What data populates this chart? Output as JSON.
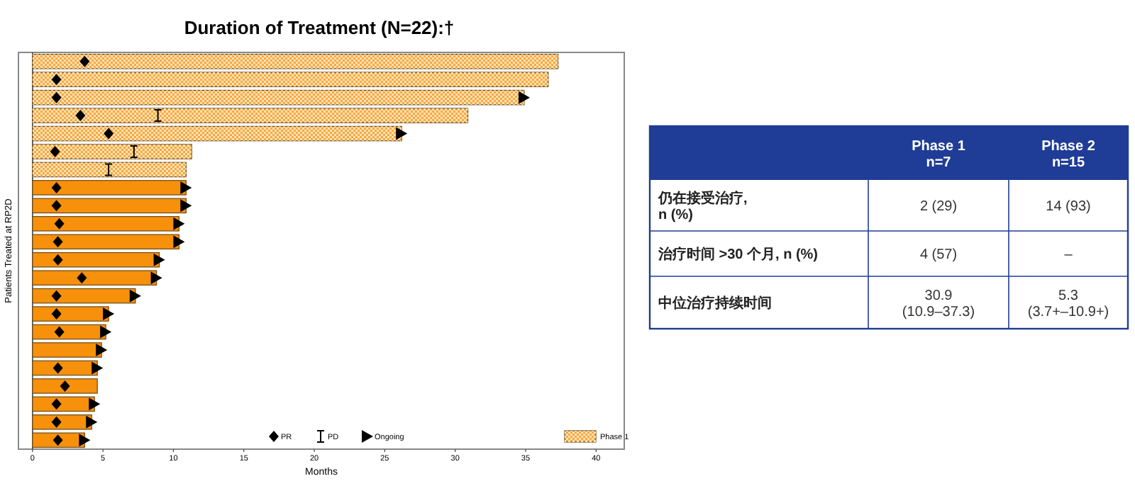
{
  "chart_data": [
    {
      "type": "bar",
      "orientation": "horizontal",
      "title": "Duration of Treatment (N=22):†",
      "xlabel": "Months",
      "ylabel": "Patients Treated at RP2D",
      "categories": [
        null,
        null,
        null,
        null,
        null,
        null,
        null,
        null,
        null,
        null,
        null,
        null,
        null,
        null,
        null,
        null,
        null,
        null,
        null,
        null,
        null,
        null
      ],
      "xlim": [
        -1,
        42
      ],
      "xticks": [
        0,
        5,
        10,
        15,
        20,
        25,
        30,
        35,
        40
      ],
      "legend": "bottom",
      "series": [
        {
          "name": "Phase 1",
          "color": "#f6a842",
          "values": [
            37.3,
            36.6,
            34.9,
            30.9,
            26.2,
            11.3,
            10.9,
            null,
            null,
            null,
            null,
            null,
            null,
            null,
            null,
            null,
            null,
            null,
            null,
            null,
            null,
            null
          ]
        },
        {
          "color": "#f7900a",
          "values": [
            null,
            null,
            null,
            null,
            null,
            null,
            null,
            10.9,
            10.9,
            10.4,
            10.4,
            9.0,
            8.8,
            7.3,
            5.4,
            5.2,
            4.9,
            4.6,
            4.6,
            4.4,
            4.2,
            3.7
          ]
        },
        {
          "type": "scatter",
          "name": "PR",
          "marker": "diamond",
          "color": "#000000",
          "values": [
            3.7,
            1.7,
            1.7,
            3.4,
            5.4,
            1.6,
            null,
            1.7,
            1.7,
            1.9,
            1.8,
            1.8,
            3.5,
            1.7,
            1.7,
            1.9,
            null,
            1.8,
            2.3,
            1.7,
            1.7,
            1.8
          ]
        },
        {
          "type": "scatter",
          "name": "PD",
          "color": "#000000",
          "values": [
            null,
            null,
            null,
            8.9,
            null,
            7.2,
            5.4,
            null,
            null,
            null,
            null,
            null,
            null,
            null,
            null,
            null,
            null,
            null,
            null,
            null,
            null,
            null
          ]
        },
        {
          "type": "scatter",
          "name": "Ongoing",
          "marker": "triangle",
          "color": "#000000",
          "values": [
            null,
            null,
            34.9,
            null,
            26.2,
            null,
            null,
            10.9,
            10.9,
            10.4,
            10.4,
            9.0,
            8.8,
            7.3,
            5.4,
            5.2,
            4.9,
            4.6,
            null,
            4.4,
            4.2,
            3.7
          ]
        }
      ]
    },
    {
      "type": "other",
      "categories": [
        "Phase 1\nn=7",
        "Phase 2\nn=15"
      ],
      "y_categories": [
        "仍在接受治疗,\nn (%)",
        "治疗时间 >30 个月, n (%)",
        "中位治疗持续时间"
      ],
      "cell_labels": [
        [
          "2 (29)",
          "14 (93)"
        ],
        [
          "4 (57)",
          "–"
        ],
        [
          "30.9\n(10.9–37.3)",
          "5.3\n(3.7+–10.9+)"
        ]
      ]
    }
  ]
}
